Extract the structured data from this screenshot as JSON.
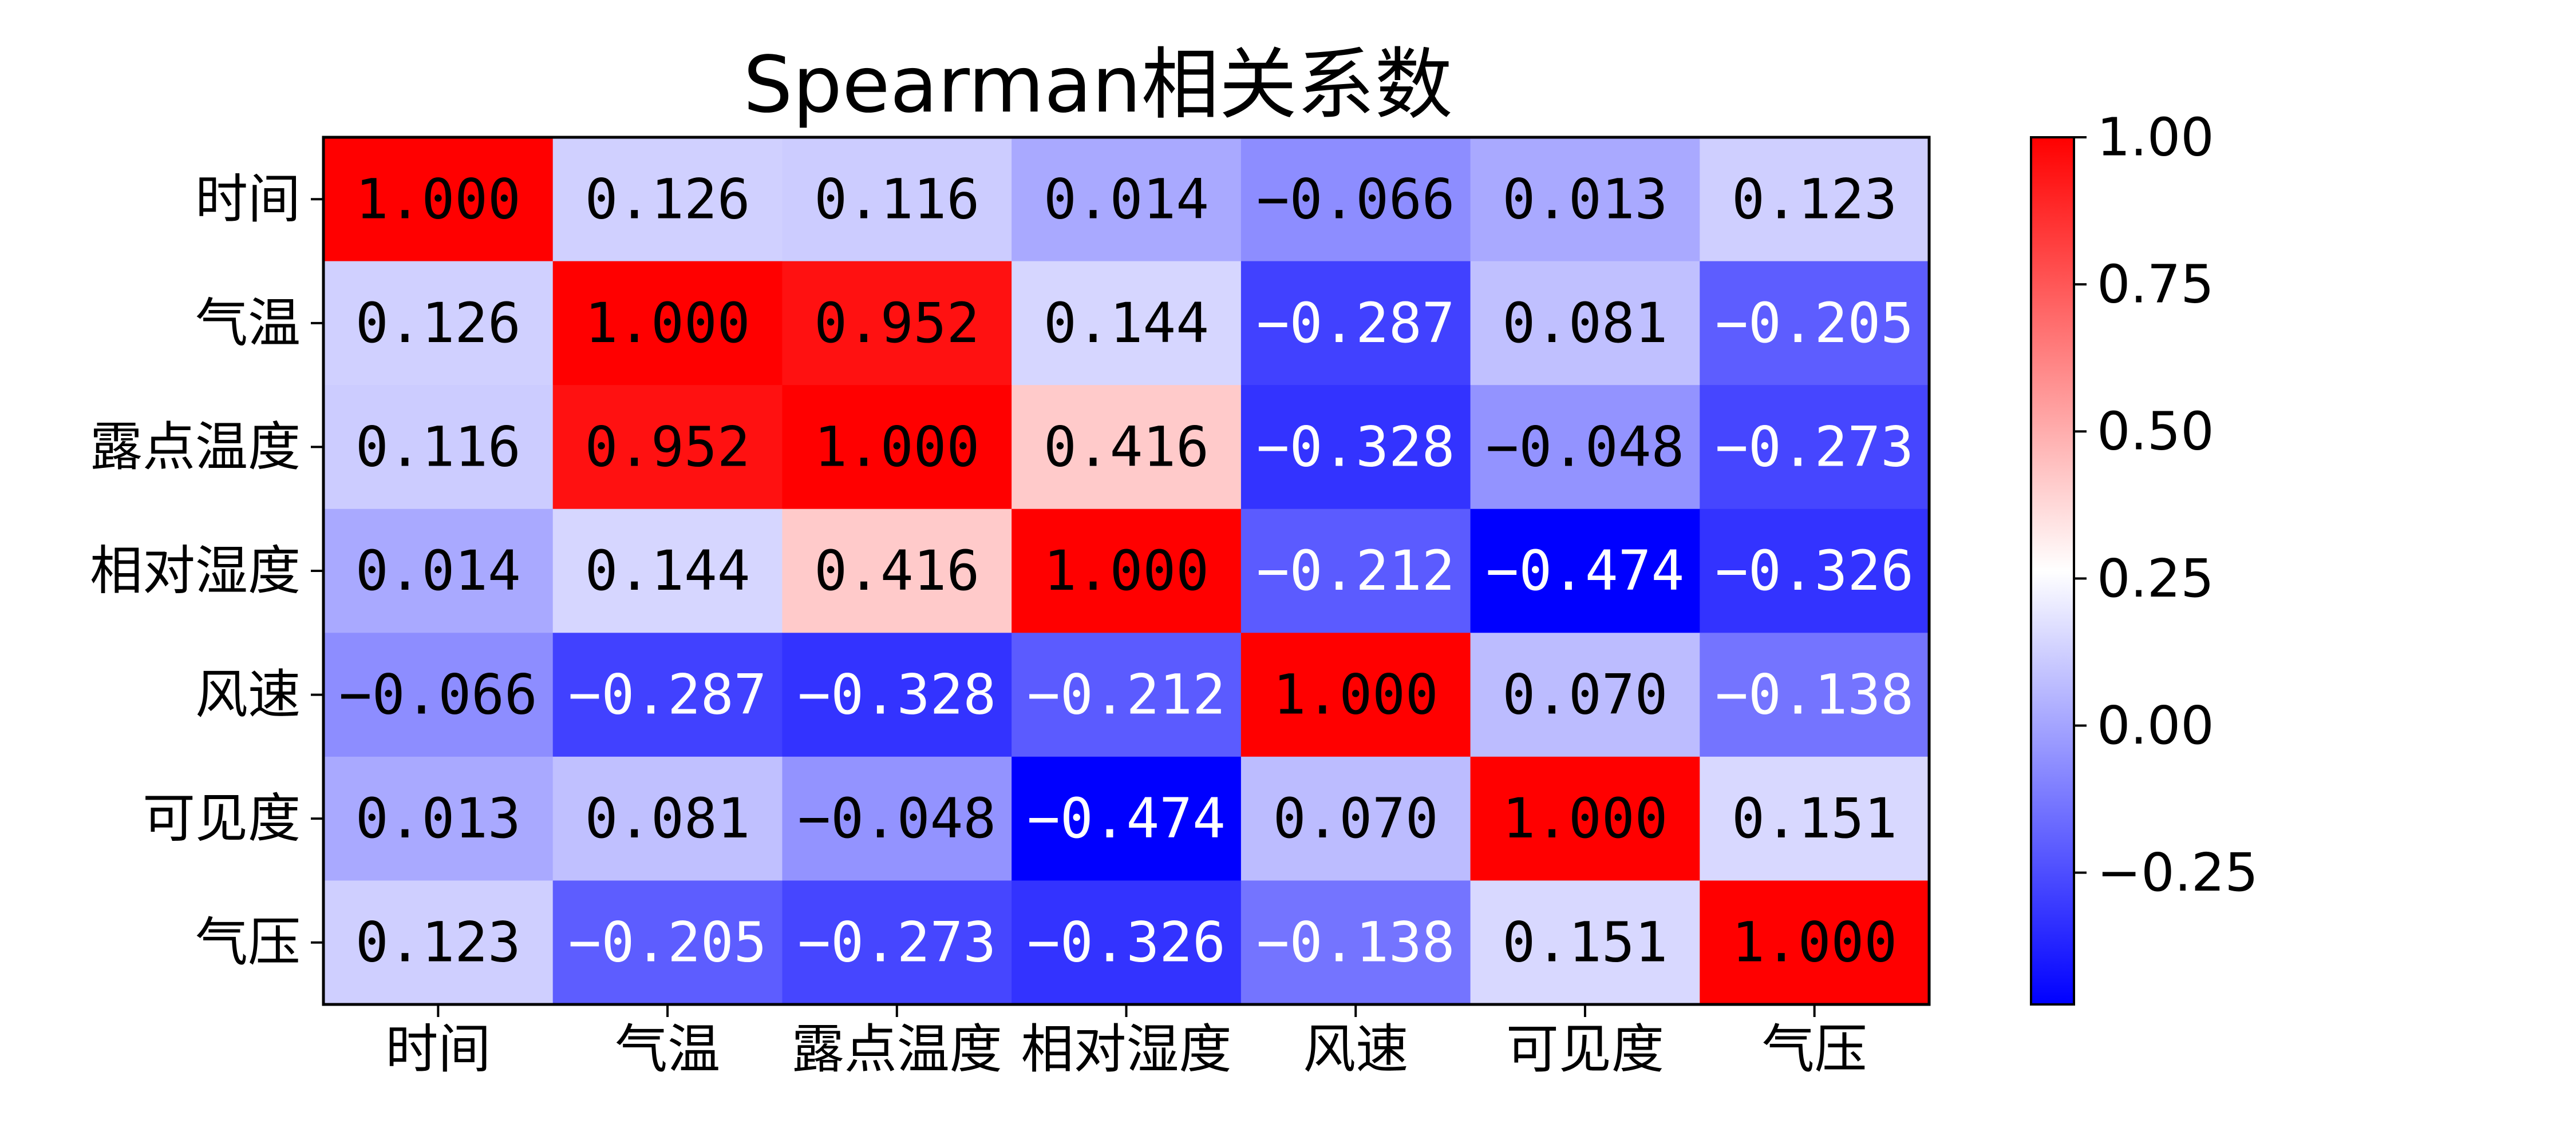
{
  "chart_data": {
    "type": "heatmap",
    "title": "Spearman相关系数",
    "labels": [
      "时间",
      "气温",
      "露点温度",
      "相对湿度",
      "风速",
      "可见度",
      "气压"
    ],
    "matrix": [
      [
        1.0,
        0.126,
        0.116,
        0.014,
        -0.066,
        0.013,
        0.123
      ],
      [
        0.126,
        1.0,
        0.952,
        0.144,
        -0.287,
        0.081,
        -0.205
      ],
      [
        0.116,
        0.952,
        1.0,
        0.416,
        -0.328,
        -0.048,
        -0.273
      ],
      [
        0.014,
        0.144,
        0.416,
        1.0,
        -0.212,
        -0.474,
        -0.326
      ],
      [
        -0.066,
        -0.287,
        -0.328,
        -0.212,
        1.0,
        0.07,
        -0.138
      ],
      [
        0.013,
        0.081,
        -0.048,
        -0.474,
        0.07,
        1.0,
        0.151
      ],
      [
        0.123,
        -0.205,
        -0.273,
        -0.326,
        -0.138,
        0.151,
        1.0
      ]
    ],
    "value_format": "3 decimals",
    "colormap": "bwr",
    "colors": {
      "low": "#0000ff",
      "mid": "#ffffff",
      "high": "#ff0000"
    },
    "vmin": -0.474,
    "vmax": 1.0,
    "colorbar": {
      "placement": "right",
      "ticks": [
        1.0,
        0.75,
        0.5,
        0.25,
        0.0,
        -0.25
      ],
      "tick_labels": [
        "1.00",
        "0.75",
        "0.50",
        "0.25",
        "0.00",
        "−0.25"
      ]
    }
  }
}
